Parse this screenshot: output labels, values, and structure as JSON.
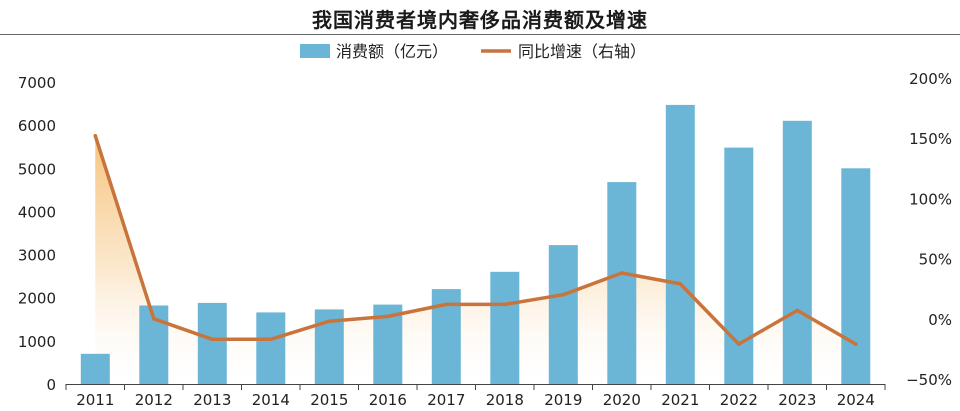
{
  "chart_data": {
    "type": "bar",
    "title": "我国消费者境内奢侈品消费额及增速",
    "categories": [
      "2011",
      "2012",
      "2013",
      "2014",
      "2015",
      "2016",
      "2017",
      "2018",
      "2019",
      "2020",
      "2021",
      "2022",
      "2023",
      "2024"
    ],
    "series": [
      {
        "name": "消费额（亿元）",
        "type": "bar",
        "axis": "left",
        "values": [
          700,
          1820,
          1880,
          1660,
          1730,
          1840,
          2200,
          2600,
          3220,
          4680,
          6470,
          5480,
          6100,
          5000
        ]
      },
      {
        "name": "同比增速（右轴）",
        "type": "line",
        "axis": "right",
        "values": [
          152,
          0,
          -17,
          -17,
          -2,
          2,
          12,
          12,
          20,
          38,
          29,
          -21,
          7,
          -21
        ]
      }
    ],
    "y_left": {
      "min": 0,
      "max": 7000,
      "ticks": [
        "0",
        "1000",
        "2000",
        "3000",
        "4000",
        "5000",
        "6000",
        "7000"
      ]
    },
    "y_right": {
      "min": -50,
      "max": 200,
      "ticks": [
        "−50%",
        "0%",
        "50%",
        "100%",
        "150%",
        "200%"
      ]
    },
    "legend_position": "top-center",
    "grid": false,
    "colors": {
      "bar": "#6bb6d6",
      "line": "#c8743c",
      "fill_top": "#f6c27a",
      "fill_bottom": "#ffffff"
    }
  }
}
